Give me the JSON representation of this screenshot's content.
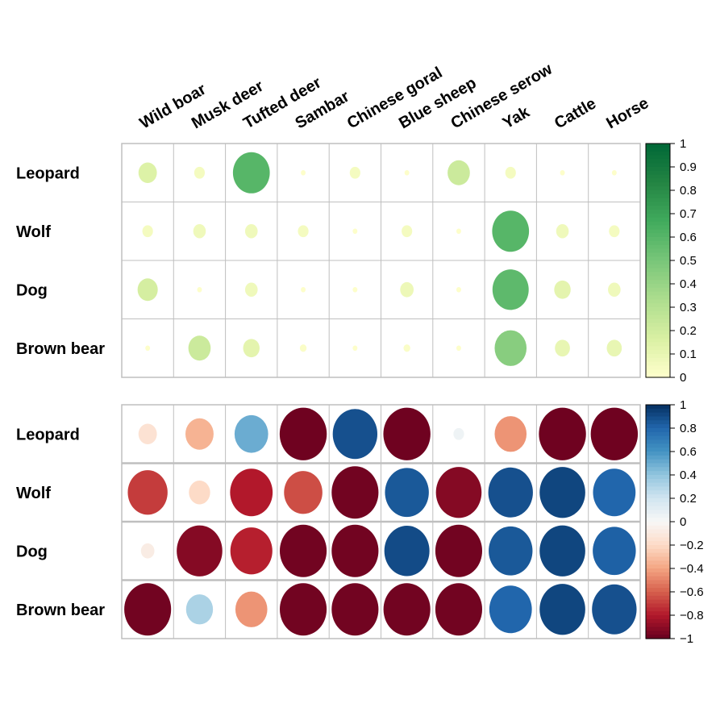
{
  "chart_data": [
    {
      "type": "heatmap",
      "title": "",
      "columns": [
        "Wild boar",
        "Musk deer",
        "Tufted deer",
        "Sambar",
        "Chinese goral",
        "Blue sheep",
        "Chinese serow",
        "Yak",
        "Cattle",
        "Horse"
      ],
      "rows": [
        "Leopard",
        "Wolf",
        "Dog",
        "Brown bear"
      ],
      "values": [
        [
          0.15,
          0.05,
          0.6,
          0.01,
          0.05,
          0.01,
          0.22,
          0.05,
          0.01,
          0.01
        ],
        [
          0.05,
          0.07,
          0.07,
          0.05,
          0.01,
          0.05,
          0.01,
          0.6,
          0.07,
          0.05
        ],
        [
          0.18,
          0.01,
          0.07,
          0.01,
          0.01,
          0.08,
          0.01,
          0.58,
          0.12,
          0.07
        ],
        [
          0.01,
          0.22,
          0.12,
          0.02,
          0.01,
          0.02,
          0.01,
          0.45,
          0.1,
          0.1
        ]
      ],
      "colorbar": {
        "min": 0,
        "max": 1,
        "ticks": [
          "1",
          "0.9",
          "0.8",
          "0.7",
          "0.6",
          "0.5",
          "0.4",
          "0.3",
          "0.2",
          "0.1",
          "0"
        ]
      },
      "colors": [
        "#FFFFCC",
        "#D9F0A3",
        "#ADDD8E",
        "#78C679",
        "#41AB5D",
        "#238443",
        "#006837"
      ],
      "grid": true
    },
    {
      "type": "heatmap",
      "title": "",
      "columns": [
        "Wild boar",
        "Musk deer",
        "Tufted deer",
        "Sambar",
        "Chinese goral",
        "Blue sheep",
        "Chinese serow",
        "Yak",
        "Cattle",
        "Horse"
      ],
      "rows": [
        "Leopard",
        "Wolf",
        "Dog",
        "Brown bear"
      ],
      "values": [
        [
          -0.15,
          -0.35,
          0.5,
          -0.98,
          0.88,
          -0.98,
          0.05,
          -0.45,
          -0.98,
          -0.98
        ],
        [
          -0.7,
          -0.2,
          -0.8,
          -0.65,
          -0.97,
          0.85,
          -0.92,
          0.88,
          0.92,
          0.8
        ],
        [
          -0.08,
          -0.92,
          -0.78,
          -0.97,
          -0.97,
          0.9,
          -0.97,
          0.85,
          0.92,
          0.82
        ],
        [
          -0.97,
          0.32,
          -0.45,
          -0.97,
          -0.97,
          -0.97,
          -0.97,
          0.8,
          0.92,
          0.88
        ]
      ],
      "colorbar": {
        "min": -1,
        "max": 1,
        "ticks": [
          "1",
          "0.8",
          "0.6",
          "0.4",
          "0.2",
          "0",
          "−0.2",
          "−0.4",
          "−0.6",
          "−0.8",
          "−1"
        ]
      },
      "colors": [
        "#67001F",
        "#B2182B",
        "#D6604D",
        "#F4A582",
        "#FDDBC7",
        "#F7F7F7",
        "#D1E5F0",
        "#92C5DE",
        "#4393C3",
        "#2166AC",
        "#053061"
      ],
      "grid": true
    }
  ]
}
